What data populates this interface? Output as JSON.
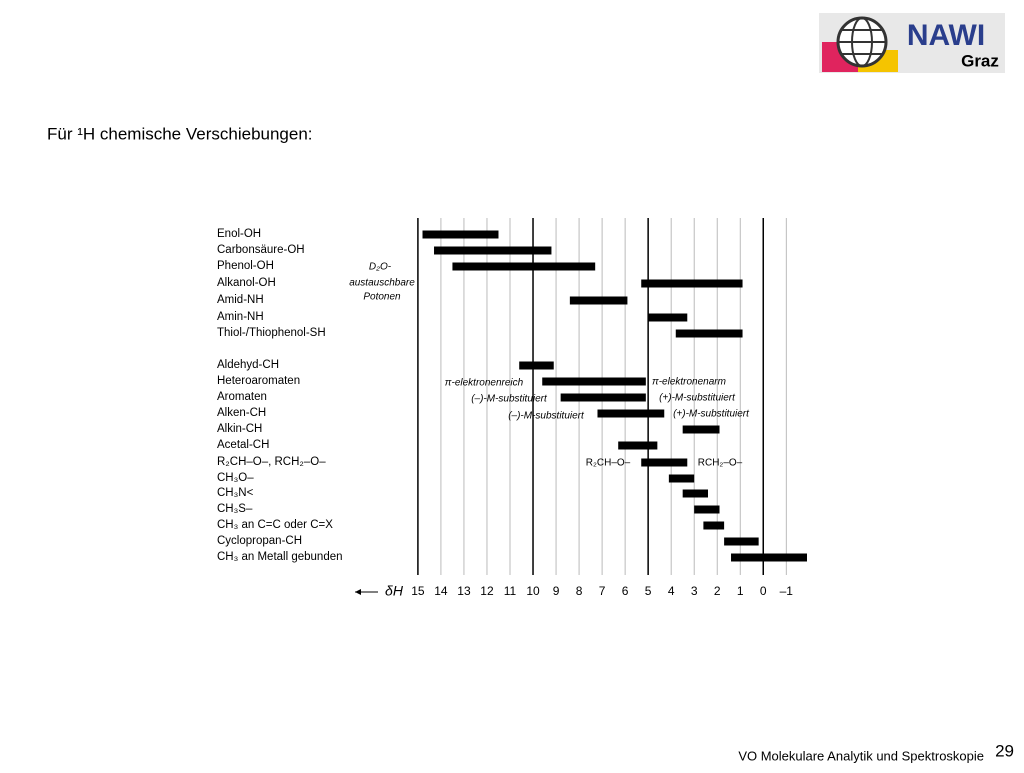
{
  "slide": {
    "title": "Für ¹H chemische Verschiebungen:",
    "footer": "VO Molekulare Analytik und Spektroskopie",
    "page": "29",
    "logo": {
      "top": "NAWI",
      "bottom": "Graz"
    }
  },
  "chart_data": {
    "type": "range-bar",
    "x_label": "δH",
    "color": "#000000",
    "categories": [
      "Enol-OH",
      "Carbonsäure-OH",
      "Phenol-OH",
      "Alkanol-OH",
      "Amid-NH",
      "Amin-NH",
      "Thiol-/Thiophenol-SH",
      "Aldehyd-CH",
      "Heteroaromaten",
      "Aromaten",
      "Alken-CH",
      "Alkin-CH",
      "Acetal-CH",
      "R₂CH–O–, RCH₂–O–",
      "CH₃O–",
      "CH₃N<",
      "CH₃S–",
      "CH₃  an C=C oder C=X",
      "Cyclopropan-CH",
      "CH₃ an Metall gebunden"
    ],
    "start": [
      14.8,
      14.3,
      13.5,
      5.3,
      8.4,
      5.0,
      3.8,
      10.6,
      9.6,
      8.8,
      7.2,
      3.5,
      6.3,
      5.3,
      4.1,
      3.5,
      3.0,
      2.6,
      1.7,
      1.4
    ],
    "end": [
      11.5,
      9.2,
      7.3,
      0.9,
      5.9,
      3.3,
      0.9,
      9.1,
      5.1,
      5.1,
      4.3,
      1.9,
      4.6,
      3.3,
      3.0,
      2.4,
      1.9,
      1.7,
      0.2,
      -1.9
    ],
    "xlim": [
      15.3,
      -1.9
    ],
    "xticks": [
      15,
      14,
      13,
      12,
      11,
      10,
      9,
      8,
      7,
      6,
      5,
      4,
      3,
      2,
      1,
      0,
      {
        "value": -1,
        "label": "–1"
      }
    ],
    "major_ticks": [
      15,
      10,
      5,
      0
    ],
    "annotations": [
      "D₂O-",
      "austauschbare",
      "Potonen",
      "π-elektronenreich",
      "π-elektronenarm",
      "(–)-M-substituiert",
      "(+)-M-substituiert",
      "(–)-M-substituiert",
      "(+)-M-substituiert",
      "R₂CH–O–",
      "RCH₂–O–"
    ]
  }
}
